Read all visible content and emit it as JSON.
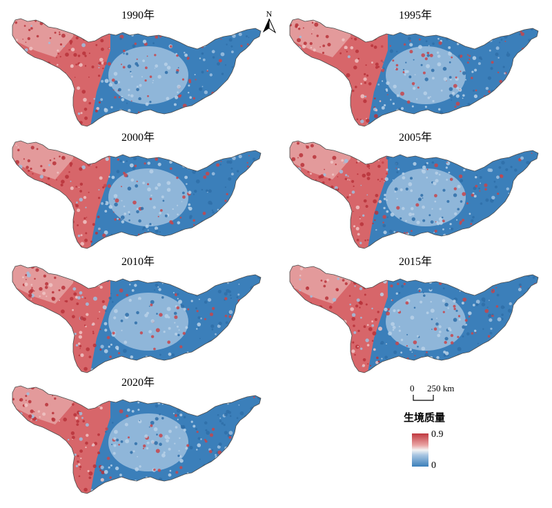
{
  "panels": [
    {
      "label": "1990年"
    },
    {
      "label": "1995年"
    },
    {
      "label": "2000年"
    },
    {
      "label": "2005年"
    },
    {
      "label": "2010年"
    },
    {
      "label": "2015年"
    },
    {
      "label": "2020年"
    }
  ],
  "north_arrow": {
    "letter": "N",
    "icon": "north-arrow-icon"
  },
  "scale_bar": {
    "start": "0",
    "end": "250 km"
  },
  "legend": {
    "title": "生境质量",
    "max": "0.9",
    "min": "0",
    "high_color": "#c0393f",
    "mid_color": "#f3f3f3",
    "low_color": "#3b7fba"
  }
}
